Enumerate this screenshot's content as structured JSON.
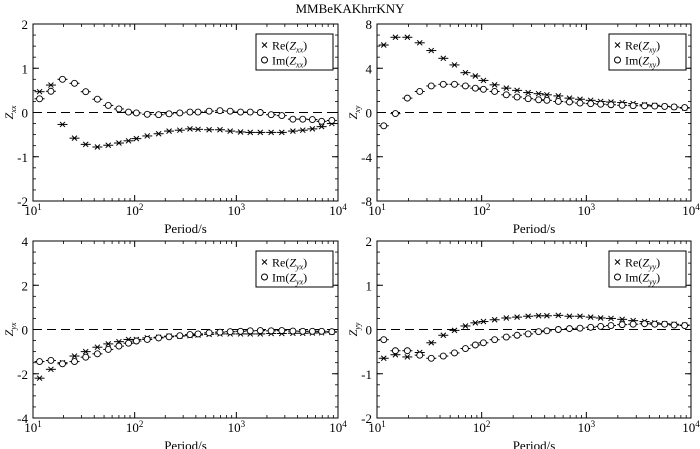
{
  "title": "MMBeKAKhrrKNY",
  "chart_data": [
    {
      "type": "scatter",
      "component": "xx",
      "ylabel": "Z",
      "ylabel_sub": "xx",
      "xlabel": "Period/s",
      "xscale": "log",
      "xlim": [
        10,
        10000
      ],
      "x_ticks": [
        {
          "base": "10",
          "exp": "1"
        },
        {
          "base": "10",
          "exp": "2"
        },
        {
          "base": "10",
          "exp": "3"
        },
        {
          "base": "10",
          "exp": "4"
        }
      ],
      "ylim": [
        -2,
        2
      ],
      "y_ticks": [
        "-2",
        "-1",
        "0",
        "1",
        "2"
      ],
      "y_tick_values": [
        -2,
        -1,
        0,
        1,
        2
      ],
      "legend_position": "top-right",
      "series": [
        {
          "name": "Re",
          "marker": "x",
          "values": [
            0.47,
            0.62,
            -0.27,
            -0.58,
            -0.72,
            -0.78,
            -0.74,
            -0.69,
            -0.64,
            -0.59,
            -0.53,
            -0.48,
            -0.42,
            -0.4,
            -0.37,
            -0.38,
            -0.39,
            -0.39,
            -0.42,
            -0.44,
            -0.45,
            -0.45,
            -0.45,
            -0.45,
            -0.42,
            -0.4,
            -0.37,
            -0.32,
            -0.25
          ]
        },
        {
          "name": "Im",
          "marker": "o",
          "values": [
            0.31,
            0.48,
            0.75,
            0.66,
            0.47,
            0.3,
            0.16,
            0.08,
            0.01,
            -0.01,
            -0.04,
            -0.05,
            -0.03,
            -0.01,
            0.01,
            0.01,
            0.03,
            0.04,
            0.03,
            0.01,
            0.01,
            0.0,
            -0.05,
            -0.07,
            -0.15,
            -0.15,
            -0.16,
            -0.2,
            -0.18
          ]
        }
      ]
    },
    {
      "type": "scatter",
      "component": "xy",
      "ylabel": "Z",
      "ylabel_sub": "xy",
      "xlabel": "Period/s",
      "xscale": "log",
      "xlim": [
        10,
        10000
      ],
      "x_ticks": [
        {
          "base": "10",
          "exp": "1"
        },
        {
          "base": "10",
          "exp": "2"
        },
        {
          "base": "10",
          "exp": "3"
        },
        {
          "base": "10",
          "exp": "4"
        }
      ],
      "ylim": [
        -8,
        8
      ],
      "y_ticks": [
        "-8",
        "-4",
        "0",
        "4",
        "8"
      ],
      "y_tick_values": [
        -8,
        -4,
        0,
        4,
        8
      ],
      "legend_position": "top-right",
      "series": [
        {
          "name": "Re",
          "marker": "x",
          "values": [
            6.1,
            6.8,
            6.8,
            6.3,
            5.6,
            4.9,
            4.3,
            3.6,
            3.3,
            2.9,
            2.5,
            2.2,
            2.0,
            1.8,
            1.7,
            1.6,
            1.5,
            1.3,
            1.2,
            1.1,
            1.0,
            0.95,
            0.9,
            0.8,
            0.7,
            0.65,
            0.55,
            0.5,
            0.4
          ]
        },
        {
          "name": "Im",
          "marker": "o",
          "values": [
            -1.2,
            -0.1,
            1.3,
            1.9,
            2.4,
            2.55,
            2.55,
            2.4,
            2.2,
            2.1,
            1.9,
            1.6,
            1.4,
            1.25,
            1.15,
            1.1,
            1.0,
            0.95,
            0.85,
            0.8,
            0.75,
            0.7,
            0.65,
            0.62,
            0.6,
            0.58,
            0.55,
            0.5,
            0.45
          ]
        }
      ]
    },
    {
      "type": "scatter",
      "component": "yx",
      "ylabel": "Z",
      "ylabel_sub": "yx",
      "xlabel": "Period/s",
      "xscale": "log",
      "xlim": [
        10,
        10000
      ],
      "x_ticks": [
        {
          "base": "10",
          "exp": "1"
        },
        {
          "base": "10",
          "exp": "2"
        },
        {
          "base": "10",
          "exp": "3"
        },
        {
          "base": "10",
          "exp": "4"
        }
      ],
      "ylim": [
        -4,
        4
      ],
      "y_ticks": [
        "-4",
        "-2",
        "0",
        "2",
        "4"
      ],
      "y_tick_values": [
        -4,
        -2,
        0,
        2,
        4
      ],
      "legend_position": "top-right",
      "series": [
        {
          "name": "Re",
          "marker": "x",
          "values": [
            -2.2,
            -1.8,
            -1.5,
            -1.2,
            -1.0,
            -0.8,
            -0.65,
            -0.55,
            -0.45,
            -0.45,
            -0.38,
            -0.35,
            -0.3,
            -0.3,
            -0.28,
            -0.25,
            -0.22,
            -0.2,
            -0.2,
            -0.2,
            -0.2,
            -0.2,
            -0.18,
            -0.18,
            -0.17,
            -0.17,
            -0.16,
            -0.15,
            -0.12
          ]
        },
        {
          "name": "Im",
          "marker": "o",
          "values": [
            -1.45,
            -1.4,
            -1.55,
            -1.45,
            -1.25,
            -1.1,
            -0.9,
            -0.75,
            -0.62,
            -0.52,
            -0.45,
            -0.38,
            -0.33,
            -0.28,
            -0.23,
            -0.2,
            -0.15,
            -0.12,
            -0.1,
            -0.08,
            -0.06,
            -0.05,
            -0.06,
            -0.05,
            -0.07,
            -0.08,
            -0.08,
            -0.08,
            -0.1
          ]
        }
      ]
    },
    {
      "type": "scatter",
      "component": "yy",
      "ylabel": "Z",
      "ylabel_sub": "yy",
      "xlabel": "Period/s",
      "xscale": "log",
      "xlim": [
        10,
        10000
      ],
      "x_ticks": [
        {
          "base": "10",
          "exp": "1"
        },
        {
          "base": "10",
          "exp": "2"
        },
        {
          "base": "10",
          "exp": "3"
        },
        {
          "base": "10",
          "exp": "4"
        }
      ],
      "ylim": [
        -2,
        2
      ],
      "y_ticks": [
        "-2",
        "-1",
        "0",
        "1",
        "2"
      ],
      "y_tick_values": [
        -2,
        -1,
        0,
        1,
        2
      ],
      "legend_position": "top-right",
      "series": [
        {
          "name": "Re",
          "marker": "x",
          "values": [
            -0.65,
            -0.57,
            -0.62,
            -0.52,
            -0.3,
            -0.13,
            -0.02,
            0.08,
            0.15,
            0.18,
            0.22,
            0.26,
            0.28,
            0.3,
            0.31,
            0.31,
            0.32,
            0.3,
            0.3,
            0.28,
            0.26,
            0.25,
            0.23,
            0.2,
            0.18,
            0.15,
            0.13,
            0.12,
            0.1
          ]
        },
        {
          "name": "Im",
          "marker": "o",
          "values": [
            -0.23,
            -0.48,
            -0.48,
            -0.58,
            -0.65,
            -0.6,
            -0.53,
            -0.43,
            -0.35,
            -0.3,
            -0.23,
            -0.17,
            -0.13,
            -0.1,
            -0.05,
            -0.03,
            0.0,
            0.02,
            0.03,
            0.05,
            0.07,
            0.09,
            0.11,
            0.12,
            0.13,
            0.12,
            0.12,
            0.1,
            0.09
          ]
        }
      ]
    }
  ],
  "periods": [
    11.6,
    15,
    19.5,
    25.6,
    33,
    43,
    55,
    70,
    87,
    104,
    133,
    172,
    218,
    278,
    350,
    420,
    540,
    690,
    870,
    1100,
    1370,
    1720,
    2200,
    2800,
    3600,
    4500,
    5600,
    6900,
    8700
  ]
}
